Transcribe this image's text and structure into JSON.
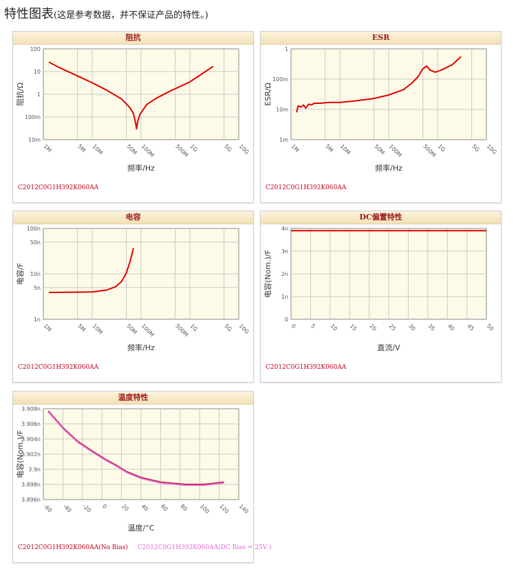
{
  "page": {
    "title": "特性图表",
    "note": "(这是参考数据，并不保证产品的特性。)"
  },
  "charts": [
    {
      "id": "impedance",
      "header": "阻抗",
      "xlabel": "频率/Hz",
      "ylabel": "阻抗/Ω",
      "part_label": "C2012C0G1H392K060AA",
      "part_label_2": "",
      "colors": {
        "line": "#e00000"
      }
    },
    {
      "id": "esr",
      "header": "ESR",
      "xlabel": "频率/Hz",
      "ylabel": "ESR/Ω",
      "part_label": "C2012C0G1H392K060AA",
      "part_label_2": "",
      "colors": {
        "line": "#e00000"
      }
    },
    {
      "id": "capacitance",
      "header": "电容",
      "xlabel": "频率/Hz",
      "ylabel": "电容/F",
      "part_label": "C2012C0G1H392K060AA",
      "part_label_2": "",
      "colors": {
        "line": "#e00000"
      }
    },
    {
      "id": "dcbias",
      "header": "DC偏置特性",
      "xlabel": "直流/V",
      "ylabel": "电容(Nom.)/F",
      "part_label": "C2012C0G1H392K060AA",
      "part_label_2": "",
      "colors": {
        "line": "#e00000"
      }
    },
    {
      "id": "temperature",
      "header": "温度特性",
      "xlabel": "温度/°C",
      "ylabel": "电容(Nom.)/F",
      "part_label": "C2012C0G1H392K060AA(No Bias)",
      "part_label_2": "C2012C0G1H392K060AA(DC Bias = 25V )",
      "colors": {
        "line": "#c0001b",
        "line2": "#e06ad6"
      }
    }
  ],
  "chart_data": [
    {
      "type": "line",
      "title": "阻抗",
      "xscale": "log",
      "yscale": "log",
      "xlim": [
        1000000,
        10000000000
      ],
      "ylim": [
        0.01,
        100
      ],
      "xticks": [
        1000000,
        5000000,
        10000000,
        50000000,
        100000000,
        500000000,
        1000000000,
        5000000000,
        10000000000
      ],
      "xtick_labels": [
        "1M",
        "5M",
        "10M",
        "50M",
        "100M",
        "500M",
        "1G",
        "5G",
        "10G"
      ],
      "yticks": [
        0.01,
        0.1,
        1,
        10,
        100
      ],
      "ytick_labels": [
        "10m",
        "100m",
        "1",
        "10",
        "100"
      ],
      "xlabel": "频率/Hz",
      "ylabel": "阻抗/Ω",
      "grid": true,
      "series": [
        {
          "x": [
            1300000,
            2000000,
            4000000,
            10000000,
            20000000,
            40000000,
            60000000,
            70000000,
            78000000,
            81000000,
            85000000,
            95000000,
            130000000,
            200000000,
            400000000,
            1000000000,
            3000000000
          ],
          "y": [
            26,
            16,
            8,
            3.2,
            1.5,
            0.62,
            0.25,
            0.14,
            0.05,
            0.03,
            0.06,
            0.13,
            0.35,
            0.65,
            1.4,
            3.5,
            17
          ],
          "color": "#e00000"
        }
      ]
    },
    {
      "type": "line",
      "title": "ESR",
      "xscale": "log",
      "yscale": "log",
      "xlim": [
        1000000,
        10000000000
      ],
      "ylim": [
        0.001,
        1
      ],
      "xticks": [
        1000000,
        5000000,
        10000000,
        50000000,
        100000000,
        500000000,
        1000000000,
        5000000000,
        10000000000
      ],
      "xtick_labels": [
        "1M",
        "5M",
        "10M",
        "50M",
        "100M",
        "500M",
        "1G",
        "5G",
        "10G"
      ],
      "yticks": [
        0.001,
        0.01,
        0.1,
        1
      ],
      "ytick_labels": [
        "1m",
        "10m",
        "100m",
        "1"
      ],
      "xlabel": "频率/Hz",
      "ylabel": "ESR/Ω",
      "grid": true,
      "series": [
        {
          "x": [
            1300000,
            1400000,
            1600000,
            1800000,
            2000000,
            2300000,
            2600000,
            3000000,
            4000000,
            6000000,
            10000000,
            20000000,
            50000000,
            100000000,
            200000000,
            300000000,
            400000000,
            500000000,
            600000000,
            700000000,
            900000000,
            1200000000,
            2000000000,
            3000000000
          ],
          "y": [
            0.008,
            0.013,
            0.012,
            0.014,
            0.011,
            0.015,
            0.014,
            0.016,
            0.016,
            0.017,
            0.017,
            0.019,
            0.023,
            0.03,
            0.045,
            0.075,
            0.12,
            0.22,
            0.27,
            0.2,
            0.17,
            0.2,
            0.3,
            0.55
          ],
          "color": "#e00000"
        }
      ]
    },
    {
      "type": "line",
      "title": "电容",
      "xscale": "log",
      "yscale": "log",
      "xlim": [
        1000000,
        10000000000
      ],
      "ylim": [
        1e-09,
        1e-07
      ],
      "xticks": [
        1000000,
        5000000,
        10000000,
        50000000,
        100000000,
        500000000,
        1000000000,
        5000000000,
        10000000000
      ],
      "xtick_labels": [
        "1M",
        "5M",
        "10M",
        "50M",
        "100M",
        "500M",
        "1G",
        "5G",
        "10G"
      ],
      "yticks": [
        1e-09,
        5e-09,
        1e-08,
        5e-08,
        1e-07
      ],
      "ytick_labels": [
        "1n",
        "5n",
        "10n",
        "50n",
        "100n"
      ],
      "xlabel": "频率/Hz",
      "ylabel": "电容/F",
      "grid": true,
      "series": [
        {
          "x": [
            1300000,
            3000000,
            10000000,
            20000000,
            30000000,
            40000000,
            50000000,
            60000000,
            70000000
          ],
          "y": [
            3.9e-09,
            3.92e-09,
            4e-09,
            4.4e-09,
            5.2e-09,
            6.8e-09,
            1.05e-08,
            1.9e-08,
            3.7e-08
          ],
          "color": "#e00000"
        }
      ]
    },
    {
      "type": "line",
      "title": "DC偏置特性",
      "xscale": "linear",
      "yscale": "linear",
      "xlim": [
        0,
        50
      ],
      "ylim": [
        0,
        4e-09
      ],
      "xticks": [
        0,
        5,
        10,
        15,
        20,
        25,
        30,
        35,
        40,
        45,
        50
      ],
      "xtick_labels": [
        "0",
        "5",
        "10",
        "15",
        "20",
        "25",
        "30",
        "35",
        "40",
        "45",
        "50"
      ],
      "yticks": [
        0,
        1e-09,
        2e-09,
        3e-09,
        4e-09
      ],
      "ytick_labels": [
        "0",
        "1n",
        "2n",
        "3n",
        "4n"
      ],
      "xlabel": "直流/V",
      "ylabel": "电容(Nom.)/F",
      "grid": true,
      "series": [
        {
          "x": [
            0,
            50
          ],
          "y": [
            3.9e-09,
            3.9e-09
          ],
          "color": "#e00000"
        }
      ]
    },
    {
      "type": "line",
      "title": "温度特性",
      "xscale": "linear",
      "yscale": "linear",
      "xlim": [
        -60,
        140
      ],
      "ylim": [
        3.896e-09,
        3.908e-09
      ],
      "xticks": [
        -60,
        -40,
        -20,
        0,
        20,
        40,
        60,
        80,
        100,
        120,
        140
      ],
      "xtick_labels": [
        "-60",
        "-40",
        "-20",
        "0",
        "20",
        "40",
        "60",
        "80",
        "100",
        "120",
        "140"
      ],
      "yticks": [
        3.896e-09,
        3.898e-09,
        3.9e-09,
        3.902e-09,
        3.904e-09,
        3.906e-09,
        3.908e-09
      ],
      "ytick_labels": [
        "3.896n",
        "3.898n",
        "3.9n",
        "3.902n",
        "3.904n",
        "3.906n",
        "3.908n"
      ],
      "xlabel": "温度/°C",
      "ylabel": "电容(Nom.)/F",
      "grid": true,
      "series": [
        {
          "name": "C2012C0G1H392K060AA(No Bias)",
          "x": [
            -55,
            -40,
            -25,
            -10,
            5,
            15,
            25,
            40,
            60,
            85,
            105,
            125
          ],
          "y": [
            3.9077e-09,
            3.9055e-09,
            3.9037e-09,
            3.9024e-09,
            3.9012e-09,
            3.9005e-09,
            3.8997e-09,
            3.8989e-09,
            3.8983e-09,
            3.898e-09,
            3.898e-09,
            3.8983e-09
          ],
          "color": "#c0001b"
        },
        {
          "name": "C2012C0G1H392K060AA(DC Bias = 25V )",
          "x": [
            -55,
            -40,
            -25,
            -10,
            5,
            15,
            25,
            40,
            60,
            85,
            105,
            125
          ],
          "y": [
            3.9076e-09,
            3.9054e-09,
            3.9036e-09,
            3.9023e-09,
            3.9011e-09,
            3.9004e-09,
            3.8996e-09,
            3.8988e-09,
            3.8982e-09,
            3.8979e-09,
            3.8979e-09,
            3.8982e-09
          ],
          "color": "#e06ad6"
        }
      ]
    }
  ]
}
